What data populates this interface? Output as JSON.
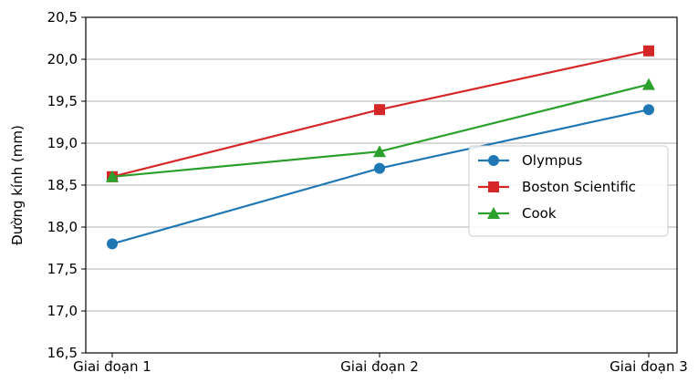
{
  "chart_data": {
    "type": "line",
    "title": "",
    "xlabel": "",
    "ylabel": "Đường kính (mm)",
    "categories": [
      "Giai đoạn 1",
      "Giai đoạn 2",
      "Giai đoạn 3"
    ],
    "ylim": [
      16.5,
      20.5
    ],
    "yticks": [
      16.5,
      17.0,
      17.5,
      18.0,
      18.5,
      19.0,
      19.5,
      20.0,
      20.5
    ],
    "ytick_labels": [
      "16,5",
      "17,0",
      "17,5",
      "18,0",
      "18,5",
      "19,0",
      "19,5",
      "20,0",
      "20,5"
    ],
    "grid": "horizontal",
    "legend_position": "center-right",
    "series": [
      {
        "name": "Olympus",
        "values": [
          17.8,
          18.7,
          19.4
        ],
        "color": "#1f77b4",
        "marker": "circle"
      },
      {
        "name": "Boston Scientific",
        "values": [
          18.6,
          19.4,
          20.1
        ],
        "color": "#d62728",
        "marker": "square"
      },
      {
        "name": "Cook",
        "values": [
          18.6,
          18.9,
          19.7
        ],
        "color": "#2ca02c",
        "marker": "triangle"
      }
    ]
  }
}
